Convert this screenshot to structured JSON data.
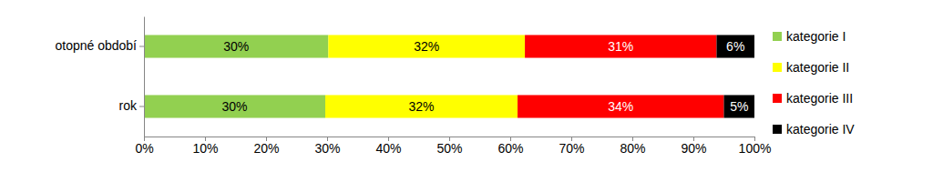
{
  "chart_data": {
    "type": "bar",
    "orientation": "horizontal",
    "stacked": true,
    "categories": [
      "otopné období",
      "rok"
    ],
    "series": [
      {
        "name": "kategorie I",
        "color": "#92d050",
        "values": [
          30.2,
          29.7
        ],
        "value_labels": [
          "30%",
          "30%"
        ]
      },
      {
        "name": "kategorie II",
        "color": "#ffff00",
        "values": [
          32.2,
          31.5
        ],
        "value_labels": [
          "32%",
          "32%"
        ]
      },
      {
        "name": "kategorie III",
        "color": "#ff0000",
        "values": [
          31.4,
          33.8
        ],
        "value_labels": [
          "31%",
          "34%"
        ]
      },
      {
        "name": "kategorie IV",
        "color": "#000000",
        "values": [
          6.2,
          5.0
        ],
        "value_labels": [
          "6%",
          "5%"
        ]
      }
    ],
    "xlim": [
      0,
      100
    ],
    "xticks": [
      {
        "value": 0,
        "label": "0%"
      },
      {
        "value": 10,
        "label": "10%"
      },
      {
        "value": 20,
        "label": "20%"
      },
      {
        "value": 30,
        "label": "30%"
      },
      {
        "value": 40,
        "label": "40%"
      },
      {
        "value": 50,
        "label": "50%"
      },
      {
        "value": 60,
        "label": "60%"
      },
      {
        "value": 70,
        "label": "70%"
      },
      {
        "value": 80,
        "label": "80%"
      },
      {
        "value": 90,
        "label": "90%"
      },
      {
        "value": 100,
        "label": "100%"
      }
    ],
    "grid": false,
    "data_labels": true,
    "legend": "right"
  }
}
